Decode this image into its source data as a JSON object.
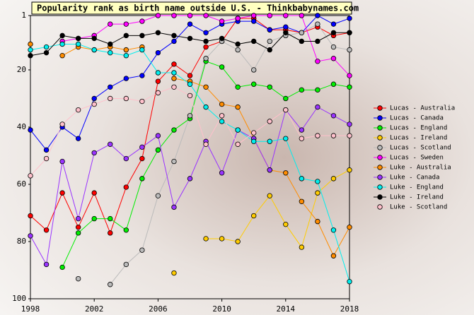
{
  "chart_data": {
    "type": "line",
    "title": "Popularity rank as birth name outside U.S. - Thinkbabynames.com",
    "x": [
      1998,
      1999,
      2000,
      2001,
      2002,
      2003,
      2004,
      2005,
      2006,
      2007,
      2008,
      2009,
      2010,
      2011,
      2012,
      2013,
      2014,
      2015,
      2016,
      2017,
      2018
    ],
    "xlim": [
      1998,
      2018
    ],
    "xticks": [
      1998,
      2002,
      2006,
      2010,
      2014,
      2018
    ],
    "ylim": [
      1,
      100
    ],
    "yticks": [
      1,
      20,
      40,
      60,
      80,
      100
    ],
    "y_inverted": true,
    "series": [
      {
        "name": "Lucas - Australia",
        "color": "#ff0000",
        "values": [
          71,
          76,
          63,
          75,
          63,
          77,
          61,
          51,
          24,
          18,
          22,
          12,
          10,
          2,
          2,
          6,
          6,
          7,
          5,
          8,
          7
        ]
      },
      {
        "name": "Lucas - Canada",
        "color": "#0000ff",
        "values": [
          41,
          48,
          40,
          44,
          30,
          26,
          23,
          22,
          14,
          10,
          4,
          7,
          4,
          3,
          3,
          6,
          5,
          7,
          1,
          4,
          2
        ]
      },
      {
        "name": "Lucas - England",
        "color": "#00ee00",
        "values": [
          null,
          null,
          89,
          77,
          72,
          72,
          76,
          58,
          48,
          41,
          37,
          17,
          19,
          26,
          25,
          26,
          30,
          27,
          27,
          25,
          26
        ]
      },
      {
        "name": "Lucas - Ireland",
        "color": "#ffcc00",
        "values": [
          null,
          null,
          null,
          null,
          null,
          null,
          null,
          null,
          null,
          91,
          null,
          79,
          79,
          80,
          71,
          64,
          74,
          82,
          63,
          58,
          55
        ]
      },
      {
        "name": "Lucas - Scotland",
        "color": "#bbbbbb",
        "values": [
          null,
          null,
          null,
          93,
          null,
          95,
          88,
          83,
          64,
          52,
          36,
          16,
          10,
          13,
          20,
          10,
          8,
          7,
          4,
          12,
          13
        ]
      },
      {
        "name": "Lucas - Sweden",
        "color": "#ff00ff",
        "values": [
          null,
          null,
          10,
          9,
          8,
          4,
          4,
          3,
          1,
          1,
          1,
          1,
          3,
          2,
          1,
          1,
          1,
          1,
          17,
          16,
          22
        ]
      },
      {
        "name": "Luke - Australia",
        "color": "#ff8c00",
        "values": [
          11,
          null,
          15,
          12,
          13,
          12,
          13,
          12,
          null,
          23,
          24,
          26,
          32,
          33,
          44,
          55,
          56,
          66,
          73,
          85,
          75
        ]
      },
      {
        "name": "Luke - Canada",
        "color": "#9933ff",
        "values": [
          78,
          88,
          52,
          72,
          49,
          46,
          51,
          47,
          43,
          68,
          58,
          45,
          56,
          41,
          44,
          55,
          34,
          41,
          33,
          36,
          39
        ]
      },
      {
        "name": "Luke - England",
        "color": "#00eeee",
        "values": [
          13,
          12,
          11,
          11,
          13,
          14,
          15,
          13,
          21,
          21,
          25,
          33,
          38,
          41,
          45,
          45,
          44,
          58,
          59,
          76,
          94
        ]
      },
      {
        "name": "Luke - Ireland",
        "color": "#000000",
        "values": [
          15,
          14,
          8,
          9,
          9,
          11,
          8,
          8,
          7,
          8,
          9,
          10,
          9,
          11,
          10,
          13,
          7,
          10,
          10,
          7,
          7
        ]
      },
      {
        "name": "Luke - Scotland",
        "color": "#ffc0cb",
        "values": [
          57,
          51,
          39,
          34,
          32,
          30,
          30,
          31,
          28,
          26,
          29,
          46,
          36,
          46,
          42,
          38,
          34,
          44,
          43,
          43,
          43
        ]
      }
    ]
  }
}
